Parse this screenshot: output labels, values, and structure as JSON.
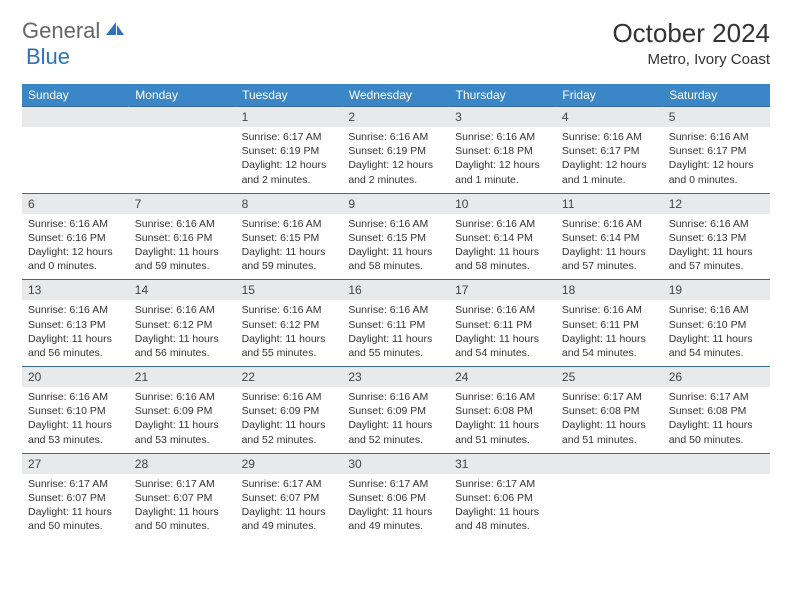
{
  "logo": {
    "text1": "General",
    "text2": "Blue"
  },
  "title": "October 2024",
  "location": "Metro, Ivory Coast",
  "colors": {
    "header_bg": "#3b86c6",
    "header_text": "#ffffff",
    "daynum_bg": "#e8e9ea",
    "border": "#2d5a8a",
    "logo_gray": "#666666",
    "logo_blue": "#2d73b5"
  },
  "weekdays": [
    "Sunday",
    "Monday",
    "Tuesday",
    "Wednesday",
    "Thursday",
    "Friday",
    "Saturday"
  ],
  "weeks": [
    [
      null,
      null,
      {
        "n": "1",
        "sr": "6:17 AM",
        "ss": "6:19 PM",
        "dl": "12 hours and 2 minutes."
      },
      {
        "n": "2",
        "sr": "6:16 AM",
        "ss": "6:19 PM",
        "dl": "12 hours and 2 minutes."
      },
      {
        "n": "3",
        "sr": "6:16 AM",
        "ss": "6:18 PM",
        "dl": "12 hours and 1 minute."
      },
      {
        "n": "4",
        "sr": "6:16 AM",
        "ss": "6:17 PM",
        "dl": "12 hours and 1 minute."
      },
      {
        "n": "5",
        "sr": "6:16 AM",
        "ss": "6:17 PM",
        "dl": "12 hours and 0 minutes."
      }
    ],
    [
      {
        "n": "6",
        "sr": "6:16 AM",
        "ss": "6:16 PM",
        "dl": "12 hours and 0 minutes."
      },
      {
        "n": "7",
        "sr": "6:16 AM",
        "ss": "6:16 PM",
        "dl": "11 hours and 59 minutes."
      },
      {
        "n": "8",
        "sr": "6:16 AM",
        "ss": "6:15 PM",
        "dl": "11 hours and 59 minutes."
      },
      {
        "n": "9",
        "sr": "6:16 AM",
        "ss": "6:15 PM",
        "dl": "11 hours and 58 minutes."
      },
      {
        "n": "10",
        "sr": "6:16 AM",
        "ss": "6:14 PM",
        "dl": "11 hours and 58 minutes."
      },
      {
        "n": "11",
        "sr": "6:16 AM",
        "ss": "6:14 PM",
        "dl": "11 hours and 57 minutes."
      },
      {
        "n": "12",
        "sr": "6:16 AM",
        "ss": "6:13 PM",
        "dl": "11 hours and 57 minutes."
      }
    ],
    [
      {
        "n": "13",
        "sr": "6:16 AM",
        "ss": "6:13 PM",
        "dl": "11 hours and 56 minutes."
      },
      {
        "n": "14",
        "sr": "6:16 AM",
        "ss": "6:12 PM",
        "dl": "11 hours and 56 minutes."
      },
      {
        "n": "15",
        "sr": "6:16 AM",
        "ss": "6:12 PM",
        "dl": "11 hours and 55 minutes."
      },
      {
        "n": "16",
        "sr": "6:16 AM",
        "ss": "6:11 PM",
        "dl": "11 hours and 55 minutes."
      },
      {
        "n": "17",
        "sr": "6:16 AM",
        "ss": "6:11 PM",
        "dl": "11 hours and 54 minutes."
      },
      {
        "n": "18",
        "sr": "6:16 AM",
        "ss": "6:11 PM",
        "dl": "11 hours and 54 minutes."
      },
      {
        "n": "19",
        "sr": "6:16 AM",
        "ss": "6:10 PM",
        "dl": "11 hours and 54 minutes."
      }
    ],
    [
      {
        "n": "20",
        "sr": "6:16 AM",
        "ss": "6:10 PM",
        "dl": "11 hours and 53 minutes."
      },
      {
        "n": "21",
        "sr": "6:16 AM",
        "ss": "6:09 PM",
        "dl": "11 hours and 53 minutes."
      },
      {
        "n": "22",
        "sr": "6:16 AM",
        "ss": "6:09 PM",
        "dl": "11 hours and 52 minutes."
      },
      {
        "n": "23",
        "sr": "6:16 AM",
        "ss": "6:09 PM",
        "dl": "11 hours and 52 minutes."
      },
      {
        "n": "24",
        "sr": "6:16 AM",
        "ss": "6:08 PM",
        "dl": "11 hours and 51 minutes."
      },
      {
        "n": "25",
        "sr": "6:17 AM",
        "ss": "6:08 PM",
        "dl": "11 hours and 51 minutes."
      },
      {
        "n": "26",
        "sr": "6:17 AM",
        "ss": "6:08 PM",
        "dl": "11 hours and 50 minutes."
      }
    ],
    [
      {
        "n": "27",
        "sr": "6:17 AM",
        "ss": "6:07 PM",
        "dl": "11 hours and 50 minutes."
      },
      {
        "n": "28",
        "sr": "6:17 AM",
        "ss": "6:07 PM",
        "dl": "11 hours and 50 minutes."
      },
      {
        "n": "29",
        "sr": "6:17 AM",
        "ss": "6:07 PM",
        "dl": "11 hours and 49 minutes."
      },
      {
        "n": "30",
        "sr": "6:17 AM",
        "ss": "6:06 PM",
        "dl": "11 hours and 49 minutes."
      },
      {
        "n": "31",
        "sr": "6:17 AM",
        "ss": "6:06 PM",
        "dl": "11 hours and 48 minutes."
      },
      null,
      null
    ]
  ],
  "labels": {
    "sunrise": "Sunrise:",
    "sunset": "Sunset:",
    "daylight": "Daylight:"
  }
}
